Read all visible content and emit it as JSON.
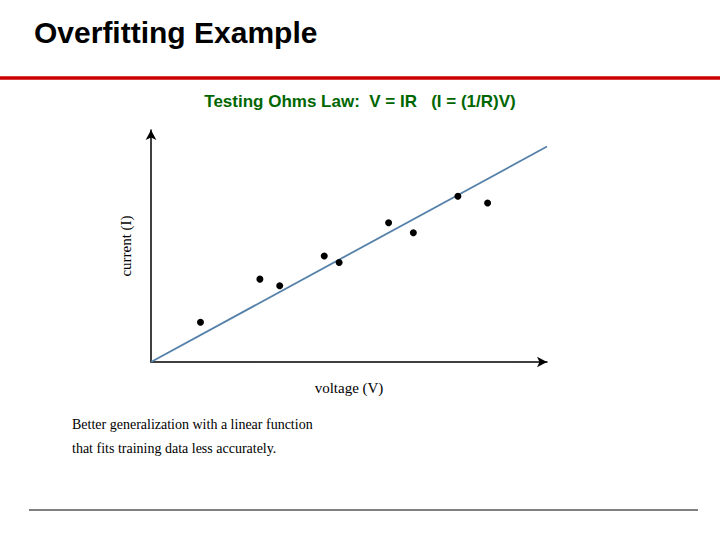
{
  "chart_data": {
    "type": "scatter",
    "title": "Overfitting Example",
    "subtitle": "Testing Ohms Law:  V = IR   (I = (1/R)V)",
    "xlabel": "voltage (V)",
    "ylabel": "current (I)",
    "annotations": [
      "Better generalization with a linear function",
      "that fits training data less accurately."
    ],
    "series": [
      {
        "type": "line",
        "color": "#5580aa",
        "x": [
          0,
          8
        ],
        "values": [
          0,
          6.5
        ]
      },
      {
        "type": "scatter",
        "color": "#000000",
        "x": [
          1.0,
          2.2,
          2.6,
          3.5,
          3.8,
          4.8,
          5.3,
          6.2,
          6.8
        ],
        "values": [
          1.2,
          2.5,
          2.3,
          3.2,
          3.0,
          4.2,
          3.9,
          5.0,
          4.8
        ]
      }
    ],
    "xlim": [
      0,
      8
    ],
    "ylim": [
      0,
      7
    ],
    "tick_labels": false,
    "grid": false
  }
}
